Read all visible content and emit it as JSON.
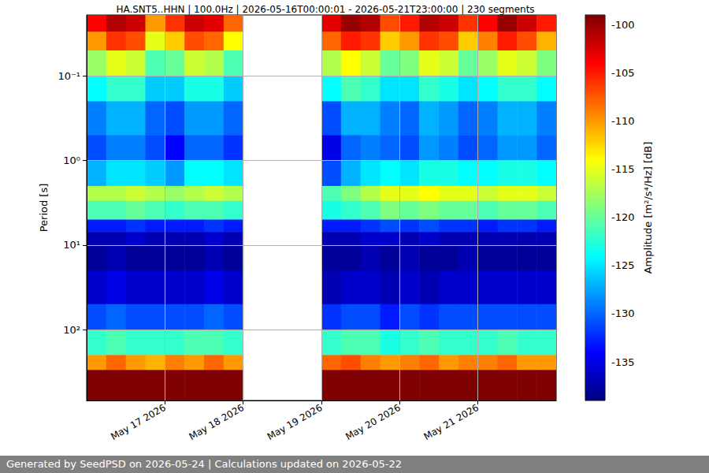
{
  "chart_data": {
    "type": "heatmap",
    "title": "HA.SNT5..HHN | 100.0Hz | 2026-05-16T00:00:01 - 2026-05-21T23:00:00 | 230 segments",
    "footer": "Generated by SeedPSD on 2026-05-24 | Calculations updated on 2026-05-22",
    "ylabel": "Period [s]",
    "colorbar_label": "Amplitude [m²/s⁴/Hz] [dB]",
    "log": "y",
    "grid": true,
    "xlim": [
      "2026-05-16T00:00:00",
      "2026-05-22T00:00:00"
    ],
    "xticks": [
      {
        "value": "2026-05-17T00:00:00",
        "label": "May 17 2026"
      },
      {
        "value": "2026-05-18T00:00:00",
        "label": "May 18 2026"
      },
      {
        "value": "2026-05-19T00:00:00",
        "label": "May 19 2026"
      },
      {
        "value": "2026-05-20T00:00:00",
        "label": "May 20 2026"
      },
      {
        "value": "2026-05-21T00:00:00",
        "label": "May 21 2026"
      }
    ],
    "ylim": [
      0.019,
      690
    ],
    "yticks": [
      {
        "value": 0.1,
        "label": "10⁻¹"
      },
      {
        "value": 1,
        "label": "10⁰"
      },
      {
        "value": 10,
        "label": "10¹"
      },
      {
        "value": 100,
        "label": "10²"
      }
    ],
    "clim": [
      -139,
      -99
    ],
    "cticks": [
      -100,
      -105,
      -110,
      -115,
      -120,
      -125,
      -130,
      -135
    ],
    "x_edges": [
      "2026-05-16T00:00:00",
      "2026-05-16T06:00:00",
      "2026-05-16T12:00:00",
      "2026-05-16T18:00:00",
      "2026-05-17T00:00:00",
      "2026-05-17T06:00:00",
      "2026-05-17T12:00:00",
      "2026-05-17T18:00:00",
      "2026-05-18T00:00:00",
      "2026-05-18T06:00:00",
      "2026-05-18T12:00:00",
      "2026-05-18T18:00:00",
      "2026-05-19T00:00:00",
      "2026-05-19T06:00:00",
      "2026-05-19T12:00:00",
      "2026-05-19T18:00:00",
      "2026-05-20T00:00:00",
      "2026-05-20T06:00:00",
      "2026-05-20T12:00:00",
      "2026-05-20T18:00:00",
      "2026-05-21T00:00:00",
      "2026-05-21T06:00:00",
      "2026-05-21T12:00:00",
      "2026-05-21T18:00:00",
      "2026-05-22T00:00:00"
    ],
    "period_edges": [
      0.019,
      0.03,
      0.05,
      0.1,
      0.2,
      0.5,
      1,
      2,
      3,
      5,
      7,
      10,
      20,
      50,
      100,
      200,
      300,
      690
    ],
    "values": [
      [
        -104,
        -101,
        -102,
        -110,
        -106,
        -102,
        -103,
        -108,
        null,
        null,
        null,
        null,
        -103,
        -100,
        -101,
        -107,
        -105,
        -101,
        -102,
        -106,
        -104,
        -100,
        -102,
        -105
      ],
      [
        -110,
        -106,
        -107,
        -115,
        -112,
        -107,
        -108,
        -114,
        null,
        null,
        null,
        null,
        -108,
        -105,
        -106,
        -112,
        -110,
        -106,
        -107,
        -112,
        -109,
        -105,
        -107,
        -111
      ],
      [
        -118,
        -115,
        -116,
        -121,
        -120,
        -116,
        -117,
        -121,
        null,
        null,
        null,
        null,
        -117,
        -114,
        -116,
        -120,
        -119,
        -115,
        -116,
        -120,
        -118,
        -115,
        -116,
        -119
      ],
      [
        -124,
        -122,
        -122,
        -126,
        -126,
        -123,
        -123,
        -126,
        null,
        null,
        null,
        null,
        -124,
        -121,
        -122,
        -125,
        -125,
        -122,
        -123,
        -125,
        -124,
        -122,
        -122,
        -124
      ],
      [
        -129,
        -127,
        -127,
        -130,
        -131,
        -128,
        -128,
        -130,
        null,
        null,
        null,
        null,
        -131,
        -127,
        -127,
        -129,
        -130,
        -127,
        -128,
        -130,
        -129,
        -127,
        -127,
        -129
      ],
      [
        -131,
        -129,
        -129,
        -131,
        -134,
        -130,
        -130,
        -132,
        null,
        null,
        null,
        null,
        -135,
        -130,
        -129,
        -130,
        -131,
        -128,
        -129,
        -131,
        -130,
        -128,
        -128,
        -130
      ],
      [
        -127,
        -125,
        -125,
        -126,
        -128,
        -124,
        -124,
        -125,
        null,
        null,
        null,
        null,
        -131,
        -127,
        -125,
        -124,
        -125,
        -123,
        -123,
        -124,
        -124,
        -123,
        -123,
        -124
      ],
      [
        -117,
        -117,
        -116,
        -117,
        -118,
        -117,
        -116,
        -117,
        null,
        null,
        null,
        null,
        -121,
        -119,
        -117,
        -115,
        -115,
        -114,
        -115,
        -115,
        -116,
        -115,
        -115,
        -116
      ],
      [
        -121,
        -121,
        -120,
        -121,
        -122,
        -121,
        -121,
        -122,
        null,
        null,
        null,
        null,
        -123,
        -122,
        -121,
        -119,
        -120,
        -119,
        -120,
        -120,
        -121,
        -120,
        -120,
        -121
      ],
      [
        -133,
        -133,
        -132,
        -133,
        -133,
        -133,
        -132,
        -133,
        null,
        null,
        null,
        null,
        -133,
        -133,
        -132,
        -131,
        -132,
        -131,
        -132,
        -132,
        -133,
        -132,
        -132,
        -133
      ],
      [
        -137,
        -137,
        -136,
        -137,
        -137,
        -137,
        -136,
        -137,
        null,
        null,
        null,
        null,
        -137,
        -137,
        -136,
        -136,
        -137,
        -136,
        -137,
        -137,
        -137,
        -137,
        -137,
        -137
      ],
      [
        -138,
        -137,
        -138,
        -138,
        -138,
        -138,
        -137,
        -138,
        null,
        null,
        null,
        null,
        -138,
        -138,
        -137,
        -138,
        -137,
        -138,
        -138,
        -137,
        -138,
        -138,
        -138,
        -138
      ],
      [
        -136,
        -135,
        -136,
        -136,
        -136,
        -136,
        -135,
        -136,
        null,
        null,
        null,
        null,
        -137,
        -136,
        -136,
        -137,
        -136,
        -137,
        -136,
        -136,
        -136,
        -136,
        -136,
        -136
      ],
      [
        -131,
        -130,
        -131,
        -131,
        -131,
        -131,
        -130,
        -131,
        null,
        null,
        null,
        null,
        -132,
        -131,
        -131,
        -133,
        -131,
        -132,
        -131,
        -131,
        -131,
        -131,
        -131,
        -131
      ],
      [
        -122,
        -121,
        -122,
        -122,
        -122,
        -121,
        -121,
        -122,
        null,
        null,
        null,
        null,
        -122,
        -121,
        -121,
        -123,
        -122,
        -121,
        -122,
        -122,
        -122,
        -121,
        -122,
        -122
      ],
      [
        -110,
        -108,
        -110,
        -111,
        -109,
        -110,
        -108,
        -110,
        null,
        null,
        null,
        null,
        -108,
        -107,
        -109,
        -110,
        -109,
        -108,
        -110,
        -109,
        -109,
        -108,
        -110,
        -110
      ],
      [
        -96,
        -96,
        -96,
        -96,
        -96,
        -96,
        -96,
        -96,
        null,
        null,
        null,
        null,
        -96,
        -96,
        -96,
        -96,
        -96,
        -96,
        -96,
        -96,
        -96,
        -96,
        -96,
        -96
      ]
    ]
  }
}
